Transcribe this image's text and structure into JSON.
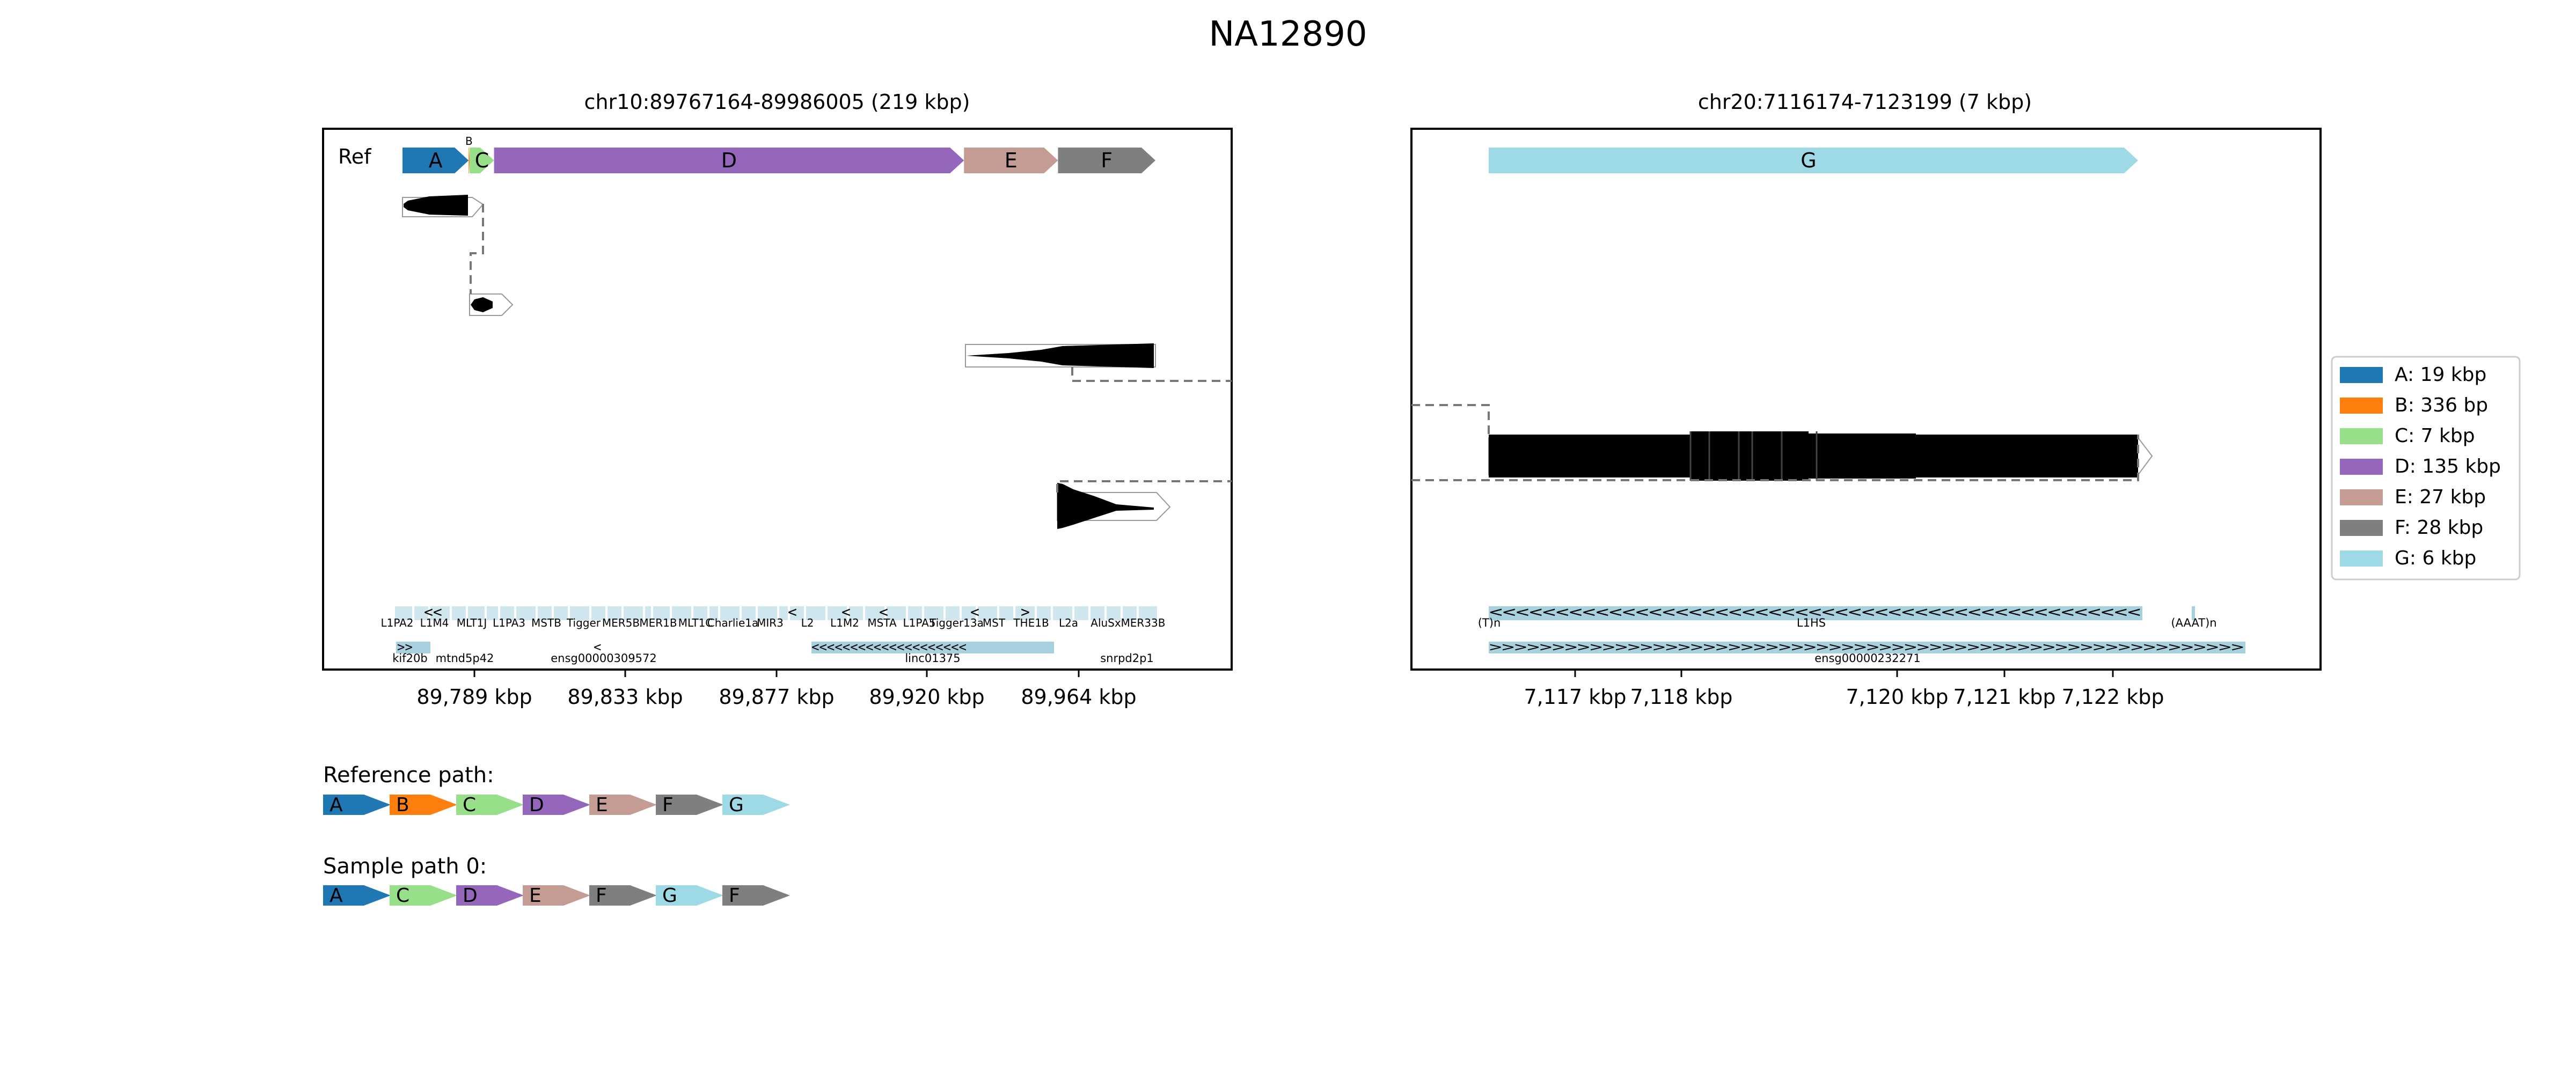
{
  "title": "NA12890",
  "colors": {
    "A": "#1f77b4",
    "B": "#ff7f0e",
    "C": "#98df8a",
    "D": "#9467bd",
    "E": "#c49c94",
    "F": "#7f7f7f",
    "G": "#9edae5",
    "repeat_track": "#a8d1e0",
    "frame": "#000000"
  },
  "left_panel": {
    "title": "chr10:89767164-89986005 (219 kbp)",
    "ref_label": "Ref",
    "segments": [
      {
        "id": "A",
        "label": "A",
        "start_kbp": 89767.2,
        "end_kbp": 89786.2
      },
      {
        "id": "B",
        "label": "B",
        "start_kbp": 89786.2,
        "end_kbp": 89786.5
      },
      {
        "id": "C",
        "label": "C",
        "start_kbp": 89786.5,
        "end_kbp": 89793.5
      },
      {
        "id": "D",
        "label": "D",
        "start_kbp": 89793.5,
        "end_kbp": 89928.5
      },
      {
        "id": "E",
        "label": "E",
        "start_kbp": 89928.5,
        "end_kbp": 89955.5
      },
      {
        "id": "F",
        "label": "F",
        "start_kbp": 89955.5,
        "end_kbp": 89983.5
      }
    ],
    "x_ticks": [
      "89,789 kbp",
      "89,833 kbp",
      "89,877 kbp",
      "89,920 kbp",
      "89,964 kbp"
    ],
    "repeat_labels": [
      "L1PA2",
      "L1M4",
      "MLT1J",
      "L1PA3",
      "MSTB",
      "Tigger",
      "MER5B",
      "MER1B",
      "MLT1C",
      "Charlie1a",
      "MIR3",
      "L2",
      "L1M2",
      "MSTA",
      "L1PA5",
      "Tigger13a",
      "MST",
      "THE1B",
      "L2a",
      "AluSx",
      "MER33B"
    ],
    "gene_labels": [
      "kif20b",
      "mtnd5p42",
      "ensg00000309572",
      "linc01375",
      "snrpd2p1"
    ]
  },
  "right_panel": {
    "title": "chr20:7116174-7123199 (7 kbp)",
    "segments": [
      {
        "id": "G",
        "label": "G",
        "start_kbp": 7116.9,
        "end_kbp": 7122.9
      }
    ],
    "x_ticks": [
      "7,117 kbp",
      "7,118 kbp",
      "7,120 kbp",
      "7,121 kbp",
      "7,122 kbp"
    ],
    "repeat_labels": [
      "(T)n",
      "L1HS",
      "(AAAT)n"
    ],
    "gene_labels": [
      "ensg00000232271"
    ]
  },
  "legend": [
    {
      "id": "A",
      "text": "A: 19 kbp"
    },
    {
      "id": "B",
      "text": "B: 336 bp"
    },
    {
      "id": "C",
      "text": "C: 7 kbp"
    },
    {
      "id": "D",
      "text": "D: 135 kbp"
    },
    {
      "id": "E",
      "text": "E: 27 kbp"
    },
    {
      "id": "F",
      "text": "F: 28 kbp"
    },
    {
      "id": "G",
      "text": "G: 6 kbp"
    }
  ],
  "reference_path": {
    "label": "Reference path:",
    "segments": [
      "A",
      "B",
      "C",
      "D",
      "E",
      "F",
      "G"
    ]
  },
  "sample_path": {
    "label": "Sample path 0:",
    "segments": [
      "A",
      "C",
      "D",
      "E",
      "F",
      "G",
      "F"
    ]
  }
}
